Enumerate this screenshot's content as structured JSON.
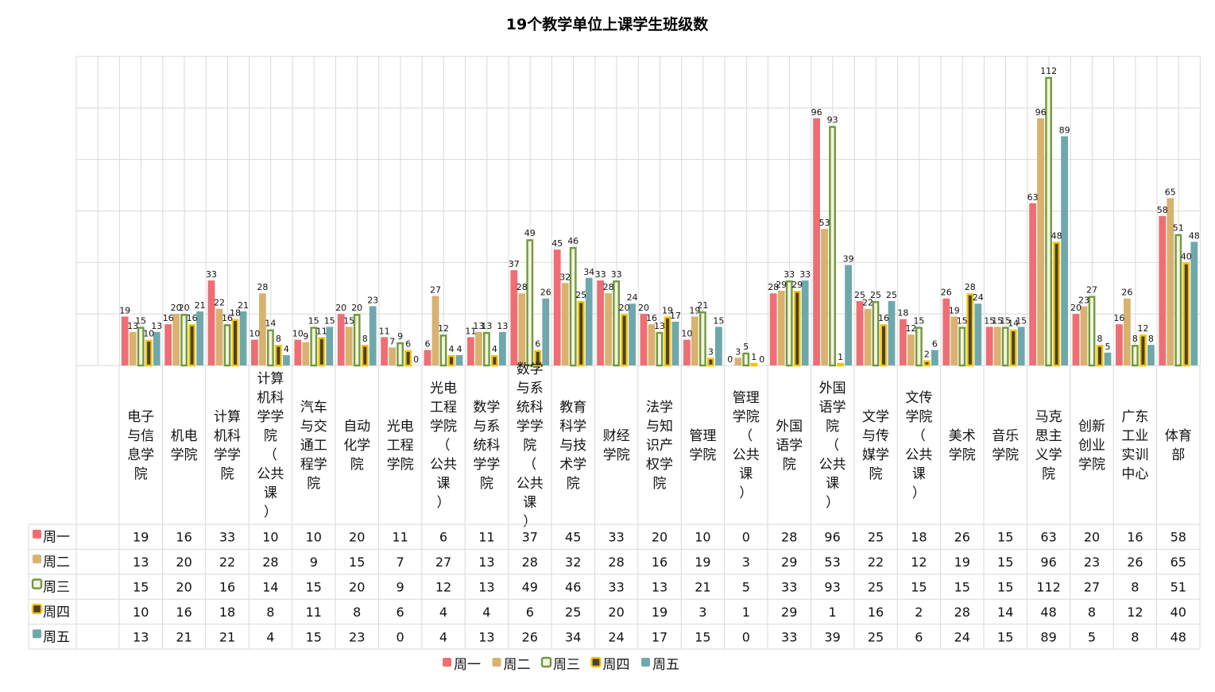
{
  "chart_data": {
    "type": "bar",
    "title": "19个教学单位上课学生班级数",
    "xlabel": "",
    "ylabel": "",
    "ylim": [
      0,
      120
    ],
    "grid": true,
    "legend_position": "bottom",
    "categories": [
      "电子与信息学院",
      "机电学院",
      "计算机科学学院",
      "计算机科学学院（公共课）",
      "汽车与交通工程学院",
      "自动化学院",
      "光电工程学院",
      "光电工程学院（公共课）",
      "数学与系统科学学院",
      "数学与系统科学学院（公共课）",
      "教育科学与技术学院",
      "财经学院",
      "法学与知识产权学院",
      "管理学院",
      "管理学院（公共课）",
      "外国语学院",
      "外国语学院（公共课）",
      "文学与传媒学院",
      "文传学院（公共课）",
      "美术学院",
      "音乐学院",
      "马克思主义学院",
      "创新创业学院",
      "广东工业实训中心",
      "体育部"
    ],
    "series": [
      {
        "name": "周一",
        "color": "#EE6E73",
        "style": "solid",
        "values": [
          19,
          16,
          33,
          10,
          10,
          20,
          11,
          6,
          11,
          37,
          45,
          33,
          20,
          10,
          0,
          28,
          96,
          25,
          18,
          26,
          15,
          63,
          20,
          16,
          58
        ]
      },
      {
        "name": "周二",
        "color": "#D9B26F",
        "style": "solid",
        "values": [
          13,
          20,
          22,
          28,
          9,
          15,
          7,
          27,
          13,
          28,
          32,
          28,
          16,
          19,
          3,
          29,
          53,
          22,
          12,
          19,
          15,
          96,
          23,
          26,
          65
        ]
      },
      {
        "name": "周三",
        "color": "#6F9A3E",
        "style": "outline",
        "values": [
          15,
          20,
          16,
          14,
          15,
          20,
          9,
          12,
          13,
          49,
          46,
          33,
          13,
          21,
          5,
          33,
          93,
          25,
          15,
          15,
          15,
          112,
          27,
          8,
          51
        ]
      },
      {
        "name": "周四",
        "color": "#F5C400",
        "style": "outline-dark",
        "values": [
          10,
          16,
          18,
          8,
          11,
          8,
          6,
          4,
          4,
          6,
          25,
          20,
          19,
          3,
          1,
          29,
          1,
          16,
          2,
          28,
          14,
          48,
          8,
          12,
          40
        ]
      },
      {
        "name": "周五",
        "color": "#6FA8AC",
        "style": "solid",
        "values": [
          13,
          21,
          21,
          4,
          15,
          23,
          0,
          4,
          13,
          26,
          34,
          24,
          17,
          15,
          0,
          33,
          39,
          25,
          6,
          24,
          15,
          89,
          5,
          8,
          48
        ]
      }
    ]
  }
}
